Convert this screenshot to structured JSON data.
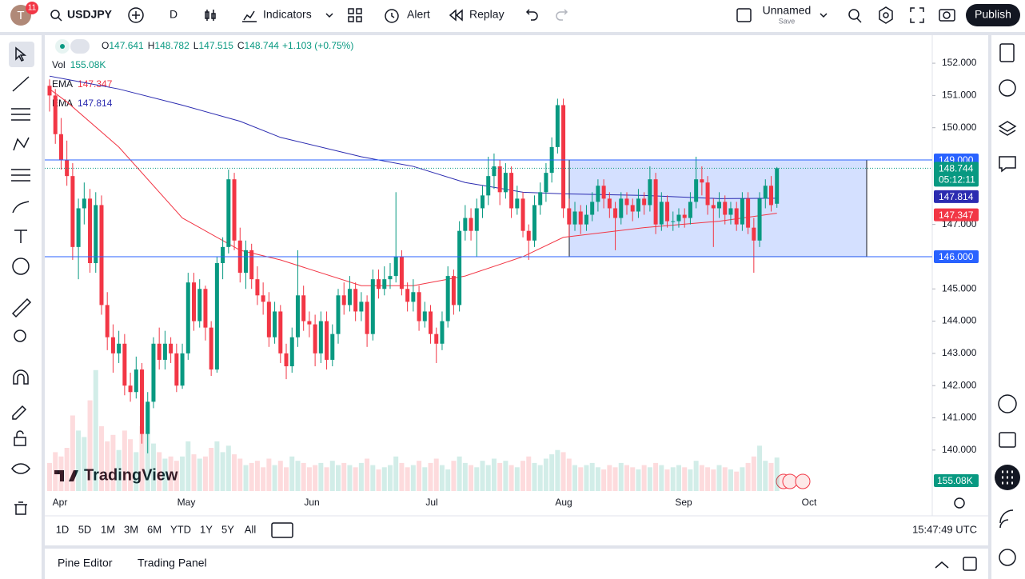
{
  "toolbar": {
    "avatar": "T",
    "badge": "11",
    "symbol": "USDJPY",
    "interval": "D",
    "indicators": "Indicators",
    "alert": "Alert",
    "replay": "Replay",
    "layout_name": "Unnamed",
    "save": "Save",
    "publish": "Publish"
  },
  "legend": {
    "ohlc": [
      {
        "key": "O",
        "value": "147.641"
      },
      {
        "key": "H",
        "value": "148.782"
      },
      {
        "key": "L",
        "value": "147.515"
      },
      {
        "key": "C",
        "value": "148.744"
      }
    ],
    "change": "+1.103 (+0.75%)",
    "vol_label": "Vol",
    "vol_value": "155.08K",
    "ema_labels": [
      {
        "key": "EMA",
        "value": "147.347"
      },
      {
        "key": "EMA",
        "value": "147.814"
      }
    ]
  },
  "chart_data": {
    "type": "candlestick",
    "up_color": "#089981",
    "down_color": "#f23645",
    "candles": [
      [
        151.3,
        151.5,
        150.5,
        151.0
      ],
      [
        151.0,
        151.2,
        149.5,
        149.8
      ],
      [
        149.8,
        150.3,
        148.7,
        149.0
      ],
      [
        149.0,
        149.6,
        148.2,
        148.5
      ],
      [
        148.5,
        148.9,
        145.9,
        146.3
      ],
      [
        146.3,
        147.8,
        145.3,
        147.5
      ],
      [
        147.5,
        148.3,
        147.0,
        147.8
      ],
      [
        147.8,
        148.1,
        145.5,
        145.8
      ],
      [
        145.8,
        148.0,
        145.5,
        147.6
      ],
      [
        147.6,
        147.9,
        144.2,
        144.5
      ],
      [
        144.5,
        144.9,
        143.1,
        143.5
      ],
      [
        143.5,
        143.9,
        142.4,
        143.0
      ],
      [
        143.0,
        143.7,
        142.7,
        143.3
      ],
      [
        143.3,
        143.6,
        141.7,
        142.0
      ],
      [
        142.0,
        142.4,
        141.5,
        141.8
      ],
      [
        141.8,
        142.9,
        141.6,
        142.5
      ],
      [
        142.5,
        142.7,
        140.2,
        140.5
      ],
      [
        140.5,
        141.8,
        139.9,
        141.5
      ],
      [
        141.5,
        143.5,
        141.3,
        143.3
      ],
      [
        143.3,
        143.8,
        142.5,
        142.8
      ],
      [
        142.8,
        143.7,
        142.5,
        143.3
      ],
      [
        143.3,
        143.5,
        142.7,
        143.0
      ],
      [
        143.0,
        143.3,
        141.8,
        142.0
      ],
      [
        142.0,
        143.3,
        141.9,
        143.0
      ],
      [
        143.0,
        145.5,
        142.8,
        145.2
      ],
      [
        145.2,
        145.5,
        143.7,
        144.0
      ],
      [
        144.0,
        145.3,
        143.8,
        145.0
      ],
      [
        145.0,
        145.1,
        143.4,
        143.8
      ],
      [
        143.8,
        144.0,
        142.3,
        142.5
      ],
      [
        142.5,
        146.0,
        142.4,
        145.8
      ],
      [
        145.8,
        146.6,
        145.3,
        146.3
      ],
      [
        146.3,
        148.7,
        146.1,
        148.4
      ],
      [
        148.4,
        148.6,
        146.2,
        146.5
      ],
      [
        146.5,
        146.9,
        145.2,
        145.5
      ],
      [
        145.5,
        146.5,
        145.0,
        146.2
      ],
      [
        146.2,
        146.4,
        145.0,
        145.3
      ],
      [
        145.3,
        145.7,
        144.5,
        144.8
      ],
      [
        144.8,
        145.2,
        144.2,
        144.6
      ],
      [
        144.6,
        144.9,
        143.2,
        143.5
      ],
      [
        143.5,
        144.6,
        143.3,
        144.3
      ],
      [
        144.3,
        144.5,
        142.7,
        143.0
      ],
      [
        143.0,
        143.3,
        142.2,
        142.6
      ],
      [
        142.6,
        143.8,
        142.4,
        143.5
      ],
      [
        143.5,
        146.2,
        143.2,
        144.8
      ],
      [
        144.8,
        145.1,
        143.7,
        144.0
      ],
      [
        144.0,
        144.3,
        143.5,
        143.9
      ],
      [
        143.9,
        144.2,
        142.6,
        143.0
      ],
      [
        143.0,
        144.3,
        142.7,
        144.0
      ],
      [
        144.0,
        144.3,
        142.5,
        142.8
      ],
      [
        142.8,
        143.9,
        142.6,
        143.6
      ],
      [
        143.6,
        145.0,
        143.3,
        144.8
      ],
      [
        144.8,
        145.2,
        144.2,
        144.5
      ],
      [
        144.5,
        145.4,
        144.3,
        145.0
      ],
      [
        145.0,
        145.2,
        144.0,
        144.3
      ],
      [
        144.3,
        144.9,
        144.0,
        144.6
      ],
      [
        144.6,
        144.8,
        143.2,
        143.6
      ],
      [
        143.6,
        145.6,
        143.4,
        145.3
      ],
      [
        145.3,
        145.6,
        144.7,
        145.0
      ],
      [
        145.0,
        145.7,
        144.8,
        145.3
      ],
      [
        145.3,
        145.8,
        145.0,
        145.4
      ],
      [
        145.4,
        148.0,
        145.2,
        146.0
      ],
      [
        146.0,
        146.2,
        144.8,
        145.0
      ],
      [
        145.0,
        145.2,
        144.3,
        144.6
      ],
      [
        144.6,
        145.3,
        144.3,
        144.9
      ],
      [
        144.9,
        145.1,
        143.7,
        144.0
      ],
      [
        144.0,
        144.6,
        143.8,
        144.3
      ],
      [
        144.3,
        144.5,
        143.3,
        143.6
      ],
      [
        143.6,
        143.8,
        142.7,
        143.3
      ],
      [
        143.3,
        144.3,
        143.1,
        144.0
      ],
      [
        144.0,
        145.7,
        143.8,
        145.4
      ],
      [
        145.4,
        145.6,
        144.2,
        144.5
      ],
      [
        144.5,
        147.1,
        144.3,
        146.8
      ],
      [
        146.8,
        147.6,
        146.5,
        147.2
      ],
      [
        147.2,
        147.5,
        146.5,
        146.8
      ],
      [
        146.8,
        147.8,
        146.0,
        147.5
      ],
      [
        147.5,
        148.2,
        147.2,
        147.9
      ],
      [
        147.9,
        149.1,
        147.6,
        148.5
      ],
      [
        148.5,
        149.2,
        148.1,
        148.8
      ],
      [
        148.8,
        149.0,
        147.6,
        148.0
      ],
      [
        148.0,
        148.9,
        147.8,
        148.6
      ],
      [
        148.6,
        148.8,
        147.2,
        147.5
      ],
      [
        147.5,
        148.2,
        147.3,
        147.8
      ],
      [
        147.8,
        148.0,
        146.6,
        146.8
      ],
      [
        146.8,
        147.0,
        145.9,
        146.5
      ],
      [
        146.5,
        147.9,
        146.3,
        147.6
      ],
      [
        147.6,
        148.3,
        147.3,
        148.0
      ],
      [
        148.0,
        148.9,
        147.7,
        148.6
      ],
      [
        148.6,
        149.7,
        148.3,
        149.4
      ],
      [
        149.4,
        150.9,
        149.2,
        150.7
      ],
      [
        150.7,
        150.9,
        147.2,
        147.5
      ],
      [
        147.5,
        147.8,
        146.6,
        147.0
      ],
      [
        147.0,
        147.7,
        146.8,
        147.4
      ],
      [
        147.4,
        147.6,
        146.7,
        147.0
      ],
      [
        147.0,
        147.6,
        146.8,
        147.3
      ],
      [
        147.3,
        148.0,
        147.1,
        147.7
      ],
      [
        147.7,
        148.4,
        147.4,
        148.2
      ],
      [
        148.2,
        148.4,
        147.5,
        147.8
      ],
      [
        147.8,
        148.0,
        147.2,
        147.5
      ],
      [
        147.5,
        147.7,
        146.2,
        147.2
      ],
      [
        147.2,
        148.0,
        147.0,
        147.8
      ],
      [
        147.8,
        148.0,
        147.3,
        147.6
      ],
      [
        147.6,
        147.8,
        147.1,
        147.4
      ],
      [
        147.4,
        148.1,
        147.2,
        147.8
      ],
      [
        147.8,
        148.0,
        147.3,
        147.6
      ],
      [
        147.6,
        148.8,
        147.4,
        148.4
      ],
      [
        148.4,
        148.6,
        146.7,
        147.0
      ],
      [
        147.0,
        148.0,
        146.8,
        147.7
      ],
      [
        147.7,
        147.9,
        146.9,
        147.1
      ],
      [
        147.1,
        147.4,
        146.8,
        147.1
      ],
      [
        147.1,
        147.5,
        146.9,
        147.3
      ],
      [
        147.3,
        147.5,
        146.9,
        147.2
      ],
      [
        147.2,
        148.0,
        147.0,
        147.7
      ],
      [
        147.7,
        149.1,
        147.5,
        148.4
      ],
      [
        148.4,
        148.8,
        147.9,
        148.3
      ],
      [
        148.3,
        148.5,
        147.3,
        147.6
      ],
      [
        147.6,
        147.8,
        146.3,
        147.5
      ],
      [
        147.5,
        148.0,
        147.2,
        147.7
      ],
      [
        147.7,
        147.9,
        147.0,
        147.3
      ],
      [
        147.3,
        147.7,
        147.0,
        147.5
      ],
      [
        147.5,
        147.7,
        146.8,
        147.0
      ],
      [
        147.0,
        148.0,
        146.8,
        147.8
      ],
      [
        147.8,
        148.0,
        146.7,
        146.9
      ],
      [
        146.9,
        147.2,
        145.5,
        146.5
      ],
      [
        146.5,
        148.0,
        146.3,
        147.8
      ],
      [
        147.8,
        148.4,
        147.5,
        148.2
      ],
      [
        148.2,
        148.5,
        147.4,
        147.6
      ],
      [
        147.641,
        148.782,
        147.515,
        148.744
      ]
    ],
    "volumes": [
      130,
      180,
      160,
      200,
      350,
      280,
      250,
      420,
      560,
      300,
      230,
      260,
      190,
      280,
      240,
      180,
      300,
      400,
      220,
      180,
      150,
      160,
      140,
      160,
      230,
      170,
      150,
      160,
      200,
      230,
      180,
      210,
      170,
      150,
      120,
      130,
      140,
      110,
      150,
      120,
      140,
      110,
      160,
      140,
      130,
      110,
      120,
      130,
      110,
      140,
      120,
      130,
      120,
      110,
      130,
      150,
      120,
      100,
      110,
      120,
      160,
      130,
      110,
      120,
      140,
      110,
      130,
      150,
      120,
      100,
      140,
      160,
      130,
      120,
      110,
      140,
      120,
      150,
      130,
      140,
      120,
      110,
      140,
      160,
      130,
      120,
      150,
      170,
      190,
      180,
      150,
      120,
      110,
      120,
      130,
      110,
      100,
      120,
      110,
      130,
      120,
      110,
      100,
      120,
      110,
      130,
      120,
      100,
      110,
      120,
      110,
      100,
      140,
      120,
      110,
      100,
      120,
      110,
      100,
      90,
      110,
      130,
      160,
      210,
      140,
      130,
      155.08
    ],
    "series": [
      {
        "name": "EMA",
        "color": "#f23645",
        "x": [
          0,
          3,
          12,
          23,
          33,
          40,
          54,
          63,
          72,
          82,
          89,
          103,
          116,
          126
        ],
        "values": [
          151.2,
          150.8,
          149.4,
          147.2,
          146.2,
          145.9,
          145.1,
          145.1,
          145.4,
          146.0,
          146.6,
          146.9,
          147.1,
          147.347
        ],
        "last_label": "147.347"
      },
      {
        "name": "EMA",
        "color": "#2b2bb0",
        "x": [
          0,
          3,
          12,
          23,
          33,
          40,
          54,
          63,
          72,
          82,
          89,
          103,
          116,
          126
        ],
        "values": [
          151.6,
          151.5,
          151.2,
          150.7,
          150.2,
          149.7,
          149.1,
          148.8,
          148.3,
          148.0,
          147.95,
          147.9,
          147.8,
          147.814
        ],
        "last_label": "147.814"
      }
    ],
    "ylim": [
      138.73,
      152.87
    ],
    "yticks": [
      {
        "value": 152,
        "label": "152.000"
      },
      {
        "value": 151,
        "label": "151.000"
      },
      {
        "value": 150,
        "label": "150.000"
      },
      {
        "value": 147,
        "label": "147.000"
      },
      {
        "value": 145,
        "label": "145.000"
      },
      {
        "value": 144,
        "label": "144.000"
      },
      {
        "value": 143,
        "label": "143.000"
      },
      {
        "value": 142,
        "label": "142.000"
      },
      {
        "value": 141,
        "label": "141.000"
      },
      {
        "value": 140,
        "label": "140.000"
      }
    ],
    "grid": false,
    "price_lines": [
      {
        "value": 149,
        "label": "149.000"
      },
      {
        "value": 146,
        "label": "146.000"
      }
    ],
    "rectangle": {
      "top": 149,
      "bottom": 146
    },
    "last_price": {
      "value": 148.744,
      "label": "148.744",
      "countdown": "05:12:11"
    },
    "x_labels": [
      "Apr",
      "May",
      "Jun",
      "Jul",
      "Aug",
      "Sep",
      "Oct"
    ]
  },
  "footer": {
    "ranges": [
      "1D",
      "5D",
      "1M",
      "3M",
      "6M",
      "YTD",
      "1Y",
      "5Y",
      "All"
    ],
    "time": "15:47:49 UTC",
    "tabs": [
      "Pine Editor",
      "Trading Panel"
    ],
    "logo": "TradingView"
  }
}
